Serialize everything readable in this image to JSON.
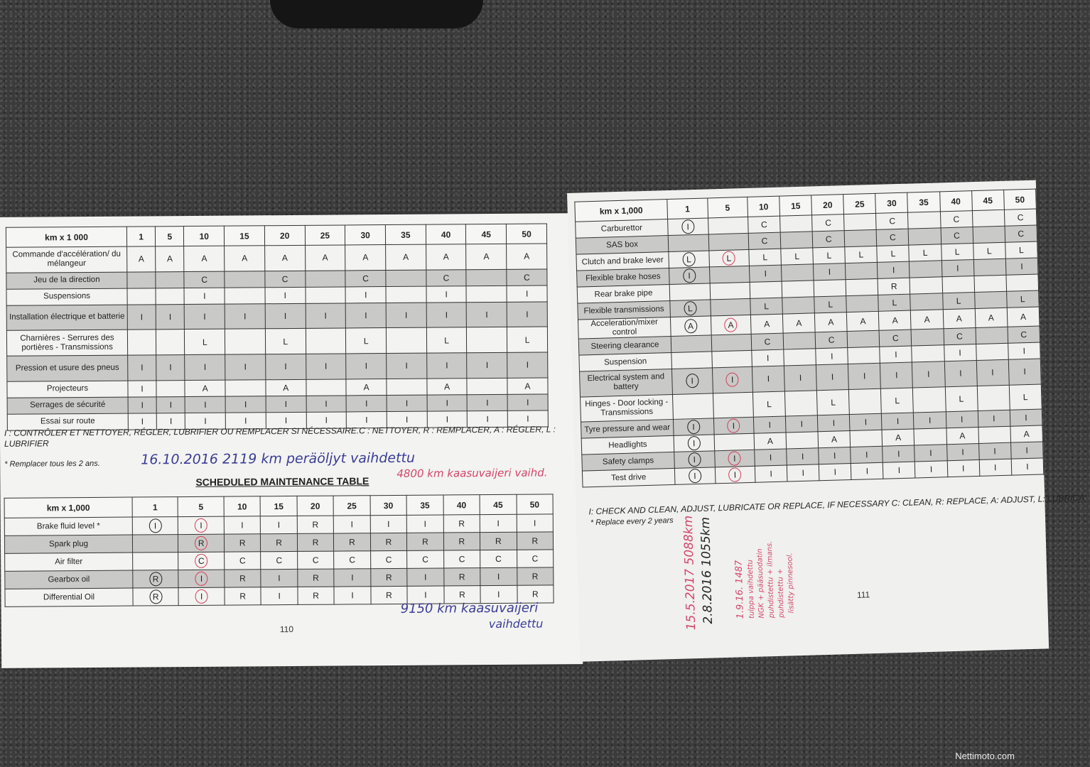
{
  "colors": {
    "circle_black": "#222222",
    "circle_red": "#d0405a",
    "ink_blue": "#3b3d96",
    "ink_red": "#d4456a"
  },
  "columns": [
    "1",
    "5",
    "10",
    "15",
    "20",
    "25",
    "30",
    "35",
    "40",
    "45",
    "50"
  ],
  "left_page": {
    "table_fr": {
      "header": "km x 1 000",
      "rows": [
        {
          "label": "Commande d'accélération/ du mélangeur",
          "cells": [
            "A",
            "A",
            "A",
            "A",
            "A",
            "A",
            "A",
            "A",
            "A",
            "A",
            "A"
          ]
        },
        {
          "label": "Jeu de la direction",
          "cells": [
            "",
            "",
            "C",
            "",
            "C",
            "",
            "C",
            "",
            "C",
            "",
            "C"
          ]
        },
        {
          "label": "Suspensions",
          "cells": [
            "",
            "",
            "I",
            "",
            "I",
            "",
            "I",
            "",
            "I",
            "",
            "I"
          ]
        },
        {
          "label": "Installation électrique et batterie",
          "cells": [
            "I",
            "I",
            "I",
            "I",
            "I",
            "I",
            "I",
            "I",
            "I",
            "I",
            "I"
          ]
        },
        {
          "label": "Charnières - Serrures des portières - Transmissions",
          "cells": [
            "",
            "",
            "L",
            "",
            "L",
            "",
            "L",
            "",
            "L",
            "",
            "L"
          ]
        },
        {
          "label": "Pression et usure des pneus",
          "cells": [
            "I",
            "I",
            "I",
            "I",
            "I",
            "I",
            "I",
            "I",
            "I",
            "I",
            "I"
          ]
        },
        {
          "label": "Projecteurs",
          "cells": [
            "I",
            "",
            "A",
            "",
            "A",
            "",
            "A",
            "",
            "A",
            "",
            "A"
          ]
        },
        {
          "label": "Serrages de sécurité",
          "cells": [
            "I",
            "I",
            "I",
            "I",
            "I",
            "I",
            "I",
            "I",
            "I",
            "I",
            "I"
          ]
        },
        {
          "label": "Essai sur route",
          "cells": [
            "I",
            "I",
            "I",
            "I",
            "I",
            "I",
            "I",
            "I",
            "I",
            "I",
            "I"
          ]
        }
      ]
    },
    "legend_fr": "I : CONTRÔLER ET NETTOYER, RÉGLER, LUBRIFIER OU REMPLACER SI NÉCESSAIRE.C : NETTOYER, R : REMPLACER, A : RÉGLER, L : LUBRIFIER",
    "footnote_fr": "* Remplacer tous les 2 ans.",
    "section_title": "SCHEDULED MAINTENANCE TABLE",
    "table_en": {
      "header": "km x 1,000",
      "rows": [
        {
          "label": "Brake fluid level *",
          "cells": [
            "I",
            "I",
            "I",
            "I",
            "R",
            "I",
            "I",
            "I",
            "R",
            "I",
            "I"
          ],
          "circles": [
            "black",
            "red"
          ]
        },
        {
          "label": "Spark plug",
          "cells": [
            "",
            "R",
            "R",
            "R",
            "R",
            "R",
            "R",
            "R",
            "R",
            "R",
            "R"
          ],
          "circles": [
            null,
            "red"
          ]
        },
        {
          "label": "Air filter",
          "cells": [
            "",
            "C",
            "C",
            "C",
            "C",
            "C",
            "C",
            "C",
            "C",
            "C",
            "C"
          ],
          "circles": [
            null,
            "red"
          ]
        },
        {
          "label": "Gearbox oil",
          "cells": [
            "R",
            "I",
            "R",
            "I",
            "R",
            "I",
            "R",
            "I",
            "R",
            "I",
            "R"
          ],
          "circles": [
            "black",
            "red"
          ]
        },
        {
          "label": "Differential Oil",
          "cells": [
            "R",
            "I",
            "R",
            "I",
            "R",
            "I",
            "R",
            "I",
            "R",
            "I",
            "R"
          ],
          "circles": [
            "black",
            "red"
          ]
        }
      ]
    },
    "page_number": "110",
    "notes": {
      "note1": "16.10.2016   2119 km peräöljyt vaihdettu",
      "note2": "4800 km kaasuvaijeri vaihd.",
      "note3a": "9150 km kaasuvaijeri",
      "note3b": "vaihdettu"
    }
  },
  "right_page": {
    "table": {
      "header": "km x 1,000",
      "rows": [
        {
          "label": "Carburettor",
          "cells": [
            "I",
            "",
            "C",
            "",
            "C",
            "",
            "C",
            "",
            "C",
            "",
            "C"
          ],
          "circles": [
            "black"
          ]
        },
        {
          "label": "SAS box",
          "cells": [
            "",
            "",
            "C",
            "",
            "C",
            "",
            "C",
            "",
            "C",
            "",
            "C"
          ]
        },
        {
          "label": "Clutch and brake lever",
          "cells": [
            "L",
            "L",
            "L",
            "L",
            "L",
            "L",
            "L",
            "L",
            "L",
            "L",
            "L"
          ],
          "circles": [
            "black",
            "red"
          ]
        },
        {
          "label": "Flexible brake hoses",
          "cells": [
            "I",
            "",
            "I",
            "",
            "I",
            "",
            "I",
            "",
            "I",
            "",
            "I"
          ],
          "circles": [
            "black"
          ]
        },
        {
          "label": "Rear brake pipe",
          "cells": [
            "",
            "",
            "",
            "",
            "",
            "",
            "R",
            "",
            "",
            "",
            ""
          ]
        },
        {
          "label": "Flexible transmissions",
          "cells": [
            "L",
            "",
            "L",
            "",
            "L",
            "",
            "L",
            "",
            "L",
            "",
            "L"
          ],
          "circles": [
            "black"
          ]
        },
        {
          "label": "Acceleration/mixer control",
          "cells": [
            "A",
            "A",
            "A",
            "A",
            "A",
            "A",
            "A",
            "A",
            "A",
            "A",
            "A"
          ],
          "circles": [
            "black",
            "red"
          ]
        },
        {
          "label": "Steering clearance",
          "cells": [
            "",
            "",
            "C",
            "",
            "C",
            "",
            "C",
            "",
            "C",
            "",
            "C"
          ]
        },
        {
          "label": "Suspension",
          "cells": [
            "",
            "",
            "I",
            "",
            "I",
            "",
            "I",
            "",
            "I",
            "",
            "I"
          ]
        },
        {
          "label": "Electrical system and battery",
          "cells": [
            "I",
            "I",
            "I",
            "I",
            "I",
            "I",
            "I",
            "I",
            "I",
            "I",
            "I"
          ],
          "circles": [
            "black",
            "red"
          ]
        },
        {
          "label": "Hinges - Door locking - Transmissions",
          "cells": [
            "",
            "",
            "L",
            "",
            "L",
            "",
            "L",
            "",
            "L",
            "",
            "L"
          ]
        },
        {
          "label": "Tyre pressure and wear",
          "cells": [
            "I",
            "I",
            "I",
            "I",
            "I",
            "I",
            "I",
            "I",
            "I",
            "I",
            "I"
          ],
          "circles": [
            "black",
            "red"
          ]
        },
        {
          "label": "Headlights",
          "cells": [
            "I",
            "",
            "A",
            "",
            "A",
            "",
            "A",
            "",
            "A",
            "",
            "A"
          ],
          "circles": [
            "black"
          ]
        },
        {
          "label": "Safety clamps",
          "cells": [
            "I",
            "I",
            "I",
            "I",
            "I",
            "I",
            "I",
            "I",
            "I",
            "I",
            "I"
          ],
          "circles": [
            "black",
            "red"
          ]
        },
        {
          "label": "Test drive",
          "cells": [
            "I",
            "I",
            "I",
            "I",
            "I",
            "I",
            "I",
            "I",
            "I",
            "I",
            "I"
          ],
          "circles": [
            "black",
            "red"
          ]
        }
      ]
    },
    "legend": "I: CHECK AND CLEAN, ADJUST, LUBRICATE OR REPLACE, IF NECESSARY C: CLEAN, R: REPLACE, A: ADJUST, L: LUBRICA",
    "footnote": "* Replace every 2 years",
    "page_number": "111",
    "notes": {
      "n1": "15.5.2017  5088km",
      "n2": "2.8.2016  1055km",
      "n3": "1.9.16. 1487",
      "n4": "tulppa vaihdettu",
      "n5": "NGK + pääsuodatin",
      "n6": "puhdistettu + ilmans.",
      "n7": "puhdistettu +",
      "n8": "lisätty pinnesool."
    }
  },
  "watermark": "Nettimoto.com"
}
